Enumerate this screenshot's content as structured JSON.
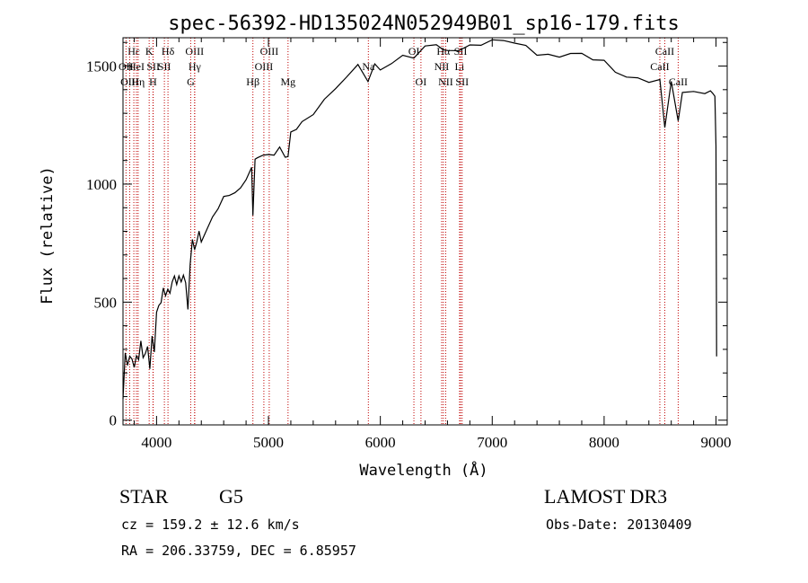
{
  "chart_data": {
    "type": "line",
    "title": "spec-56392-HD135024N052949B01_sp16-179.fits",
    "xlabel": "Wavelength (Å)",
    "ylabel": "Flux (relative)",
    "xlim": [
      3700,
      9100
    ],
    "ylim": [
      -20,
      1620
    ],
    "xticks": [
      4000,
      5000,
      6000,
      7000,
      8000,
      9000
    ],
    "yticks": [
      0,
      500,
      1000,
      1500
    ],
    "grid": false,
    "series": [
      {
        "name": "flux",
        "color": "#000000",
        "x": [
          3700,
          3720,
          3740,
          3760,
          3780,
          3800,
          3820,
          3840,
          3860,
          3880,
          3900,
          3920,
          3940,
          3960,
          3980,
          4000,
          4020,
          4040,
          4060,
          4080,
          4100,
          4120,
          4140,
          4160,
          4180,
          4200,
          4220,
          4240,
          4260,
          4280,
          4300,
          4320,
          4340,
          4360,
          4380,
          4400,
          4450,
          4500,
          4550,
          4600,
          4650,
          4700,
          4750,
          4800,
          4850,
          4861,
          4880,
          4900,
          4950,
          5000,
          5050,
          5100,
          5150,
          5175,
          5200,
          5250,
          5300,
          5400,
          5500,
          5600,
          5700,
          5800,
          5890,
          5950,
          6000,
          6100,
          6200,
          6300,
          6400,
          6500,
          6563,
          6600,
          6700,
          6800,
          6900,
          7000,
          7100,
          7200,
          7300,
          7400,
          7500,
          7600,
          7700,
          7800,
          7900,
          8000,
          8100,
          8200,
          8300,
          8400,
          8498,
          8542,
          8600,
          8662,
          8700,
          8800,
          8900,
          8950,
          8970,
          8990,
          9000,
          9005
        ],
        "values": [
          90,
          280,
          210,
          260,
          270,
          230,
          300,
          255,
          330,
          250,
          260,
          320,
          220,
          380,
          300,
          450,
          480,
          470,
          560,
          530,
          570,
          560,
          580,
          610,
          550,
          600,
          590,
          620,
          610,
          470,
          660,
          750,
          700,
          760,
          800,
          780,
          820,
          860,
          890,
          920,
          950,
          960,
          1000,
          1040,
          1070,
          870,
          1080,
          1100,
          1120,
          1130,
          1150,
          1160,
          1120,
          1100,
          1200,
          1230,
          1260,
          1320,
          1370,
          1410,
          1450,
          1480,
          1430,
          1500,
          1500,
          1530,
          1550,
          1540,
          1560,
          1580,
          1560,
          1570,
          1590,
          1595,
          1600,
          1595,
          1590,
          1590,
          1580,
          1570,
          1560,
          1550,
          1550,
          1530,
          1520,
          1510,
          1490,
          1470,
          1460,
          1440,
          1420,
          1230,
          1420,
          1270,
          1410,
          1400,
          1400,
          1380,
          1370,
          1360,
          1150,
          270
        ]
      }
    ],
    "lines": [
      {
        "name": "Hε",
        "wave": 3797,
        "row": 0
      },
      {
        "name": "OII",
        "wave": 3727,
        "row": 1
      },
      {
        "name": "OIII",
        "wave": 3760,
        "row": 2
      },
      {
        "name": "HeI",
        "wave": 3820,
        "row": 1
      },
      {
        "name": "Hη",
        "wave": 3835,
        "row": 2
      },
      {
        "name": "K",
        "wave": 3934,
        "row": 0
      },
      {
        "name": "SII",
        "wave": 3970,
        "row": 1
      },
      {
        "name": "H",
        "wave": 3968,
        "row": 2
      },
      {
        "name": "Hδ",
        "wave": 4102,
        "row": 0
      },
      {
        "name": "SII",
        "wave": 4070,
        "row": 1
      },
      {
        "name": "OIII",
        "wave": 4340,
        "row": 0
      },
      {
        "name": "Hγ",
        "wave": 4341,
        "row": 1
      },
      {
        "name": "G",
        "wave": 4305,
        "row": 2
      },
      {
        "name": "Hβ",
        "wave": 4861,
        "row": 2
      },
      {
        "name": "OIII",
        "wave": 5007,
        "row": 0
      },
      {
        "name": "OIII",
        "wave": 4959,
        "row": 1
      },
      {
        "name": "Mg",
        "wave": 5175,
        "row": 2
      },
      {
        "name": "Na",
        "wave": 5893,
        "row": 1
      },
      {
        "name": "OI",
        "wave": 6300,
        "row": 0
      },
      {
        "name": "OI",
        "wave": 6363,
        "row": 2
      },
      {
        "name": "Hα",
        "wave": 6563,
        "row": 0
      },
      {
        "name": "NII",
        "wave": 6548,
        "row": 1
      },
      {
        "name": "NII",
        "wave": 6584,
        "row": 2
      },
      {
        "name": "SII",
        "wave": 6717,
        "row": 0
      },
      {
        "name": "Li",
        "wave": 6708,
        "row": 1
      },
      {
        "name": "SII",
        "wave": 6731,
        "row": 2
      },
      {
        "name": "CaII",
        "wave": 8542,
        "row": 0
      },
      {
        "name": "CaII",
        "wave": 8498,
        "row": 1
      },
      {
        "name": "CaII",
        "wave": 8662,
        "row": 2
      }
    ]
  },
  "info": {
    "object_class": "STAR",
    "subclass": "G5",
    "survey": "LAMOST DR3",
    "cz": "cz = 159.2 ± 12.6 km/s",
    "obs_date": "Obs-Date: 20130409",
    "coords": "RA = 206.33759, DEC =   6.85957"
  }
}
